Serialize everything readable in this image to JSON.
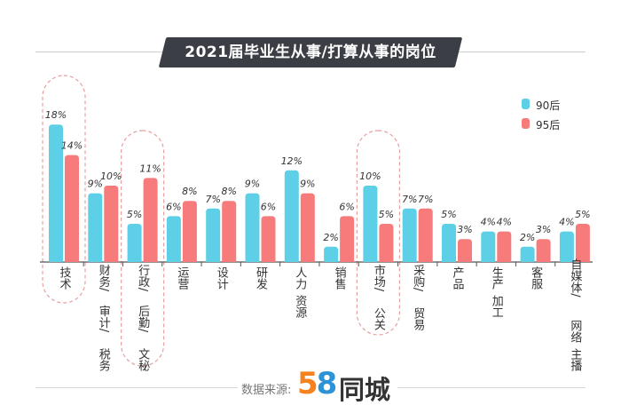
{
  "title": "2021届毕业生从事/打算从事的岗位",
  "source_label": "数据来源:",
  "logo": {
    "digit_five": "5",
    "digit_eight": "8",
    "text": "同城"
  },
  "colors": {
    "s90": "#5dcfe6",
    "s95": "#f77b7b",
    "highlight": "#e8a0a0",
    "axis": "#555555",
    "title_bg": "#3b3f45"
  },
  "chart_data": {
    "type": "bar",
    "title": "2021届毕业生从事/打算从事的岗位",
    "categories": [
      "技术",
      "财务/审计/税务",
      "行政/后勤/文秘",
      "运营",
      "设计",
      "研发",
      "人力资源",
      "销售",
      "市场/公关",
      "采购/贸易",
      "产品",
      "生产加工",
      "客服",
      "自媒体/网络主播"
    ],
    "category_lines": [
      [
        "技术"
      ],
      [
        "财务/",
        "审计/",
        "税务"
      ],
      [
        "行政/",
        "后勤/",
        "文秘"
      ],
      [
        "运营"
      ],
      [
        "设计"
      ],
      [
        "研发"
      ],
      [
        "人力",
        "资源"
      ],
      [
        "销售"
      ],
      [
        "市场/",
        "公关"
      ],
      [
        "采购/",
        "贸易"
      ],
      [
        "产品"
      ],
      [
        "生产",
        "加工"
      ],
      [
        "客服"
      ],
      [
        "自媒体/",
        "网络",
        "主播"
      ]
    ],
    "series": [
      {
        "name": "90后",
        "values": [
          18,
          9,
          5,
          6,
          7,
          9,
          12,
          2,
          10,
          7,
          5,
          4,
          2,
          4
        ]
      },
      {
        "name": "95后",
        "values": [
          14,
          10,
          11,
          8,
          8,
          6,
          9,
          6,
          5,
          7,
          3,
          4,
          3,
          5
        ]
      }
    ],
    "value_suffix": "%",
    "highlighted": [
      "技术",
      "行政/后勤/文秘",
      "市场/公关"
    ],
    "ylim": [
      0,
      20
    ],
    "grid": false,
    "legend_position": "top-right"
  }
}
